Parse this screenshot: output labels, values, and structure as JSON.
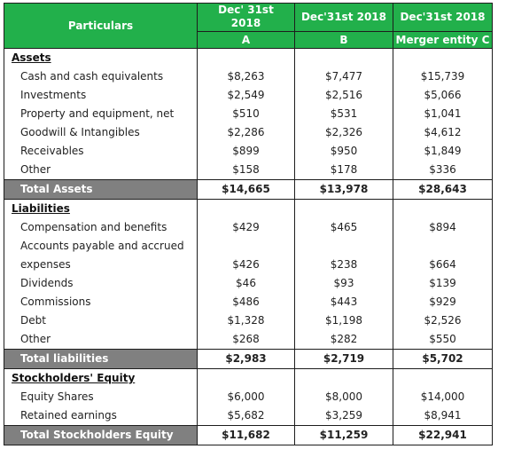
{
  "header": {
    "particulars": "Particulars",
    "col_a_line1": "Dec' 31st",
    "col_a_line2": "2018",
    "col_b": "Dec'31st 2018",
    "col_c": "Dec'31st 2018",
    "col_a_sub": "A",
    "col_b_sub": "B",
    "col_c_sub": "Merger entity C"
  },
  "assets": {
    "title": "Assets",
    "rows": [
      {
        "label": "Cash and cash equivalents",
        "a": "$8,263",
        "b": "$7,477",
        "c": "$15,739"
      },
      {
        "label": "Investments",
        "a": "$2,549",
        "b": "$2,516",
        "c": "$5,066"
      },
      {
        "label": "Property and equipment, net",
        "a": "$510",
        "b": "$531",
        "c": "$1,041"
      },
      {
        "label": "Goodwill & Intangibles",
        "a": "$2,286",
        "b": "$2,326",
        "c": "$4,612"
      },
      {
        "label": "Receivables",
        "a": "$899",
        "b": "$950",
        "c": "$1,849"
      },
      {
        "label": "Other",
        "a": "$158",
        "b": "$178",
        "c": "$336"
      }
    ],
    "total": {
      "label": "Total Assets",
      "a": "$14,665",
      "b": "$13,978",
      "c": "$28,643"
    }
  },
  "liabilities": {
    "title": "Liabilities",
    "rows": [
      {
        "label": "Compensation and benefits",
        "a": "$429",
        "b": "$465",
        "c": "$894"
      },
      {
        "label": "Accounts payable and accrued",
        "a": "",
        "b": "",
        "c": ""
      },
      {
        "label": "expenses",
        "a": "$426",
        "b": "$238",
        "c": "$664"
      },
      {
        "label": "Dividends",
        "a": "$46",
        "b": "$93",
        "c": "$139"
      },
      {
        "label": "Commissions",
        "a": "$486",
        "b": "$443",
        "c": "$929"
      },
      {
        "label": "Debt",
        "a": "$1,328",
        "b": "$1,198",
        "c": "$2,526"
      },
      {
        "label": "Other",
        "a": "$268",
        "b": "$282",
        "c": "$550"
      }
    ],
    "total": {
      "label": "Total liabilities",
      "a": "$2,983",
      "b": "$2,719",
      "c": "$5,702"
    }
  },
  "equity": {
    "title": "Stockholders' Equity",
    "rows": [
      {
        "label": "Equity Shares",
        "a": "$6,000",
        "b": "$8,000",
        "c": "$14,000"
      },
      {
        "label": "Retained earnings",
        "a": "$5,682",
        "b": "$3,259",
        "c": "$8,941"
      }
    ],
    "total": {
      "label": "Total Stockholders Equity",
      "a": "$11,682",
      "b": "$11,259",
      "c": "$22,941"
    }
  }
}
